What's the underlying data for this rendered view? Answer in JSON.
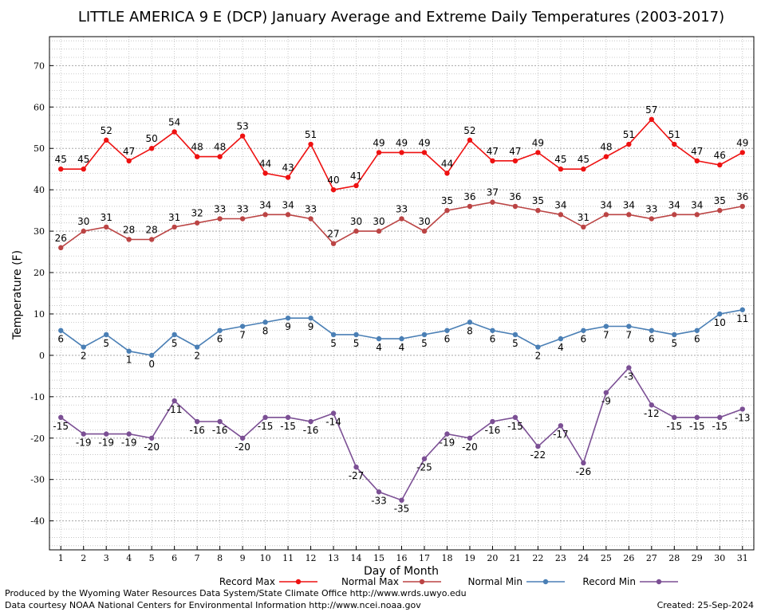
{
  "chart_data": {
    "type": "line",
    "title": "LITTLE AMERICA 9 E (DCP) January Average and Extreme Daily Temperatures (2003-2017)",
    "xlabel": "Day of Month",
    "ylabel": "Temperature (F)",
    "xlim": [
      0.5,
      31.5
    ],
    "ylim": [
      -47,
      77
    ],
    "ytick_step": 10,
    "grid": true,
    "legend_position": "bottom",
    "x": [
      1,
      2,
      3,
      4,
      5,
      6,
      7,
      8,
      9,
      10,
      11,
      12,
      13,
      14,
      15,
      16,
      17,
      18,
      19,
      20,
      21,
      22,
      23,
      24,
      25,
      26,
      27,
      28,
      29,
      30,
      31
    ],
    "series": [
      {
        "name": "Record Max",
        "color": "#ee1111",
        "label_pos": "above",
        "values": [
          45,
          45,
          52,
          47,
          50,
          54,
          48,
          48,
          53,
          44,
          43,
          51,
          40,
          41,
          49,
          49,
          49,
          44,
          52,
          47,
          47,
          49,
          45,
          45,
          48,
          51,
          57,
          51,
          47,
          46,
          49
        ]
      },
      {
        "name": "Normal Max",
        "color": "#bb4444",
        "label_pos": "above",
        "values": [
          26,
          30,
          31,
          28,
          28,
          31,
          32,
          33,
          33,
          34,
          34,
          33,
          27,
          30,
          30,
          33,
          30,
          35,
          36,
          37,
          36,
          35,
          34,
          31,
          34,
          34,
          33,
          34,
          34,
          35,
          36
        ]
      },
      {
        "name": "Normal Min",
        "color": "#4a7fb5",
        "label_pos": "below",
        "values": [
          6,
          2,
          5,
          1,
          0,
          5,
          2,
          6,
          7,
          8,
          9,
          9,
          5,
          5,
          4,
          4,
          5,
          6,
          8,
          6,
          5,
          2,
          4,
          6,
          7,
          7,
          6,
          5,
          6,
          10,
          11
        ]
      },
      {
        "name": "Record Min",
        "color": "#7b4f94",
        "label_pos": "below",
        "values": [
          -15,
          -19,
          -19,
          -19,
          -20,
          -11,
          -16,
          -16,
          -20,
          -15,
          -15,
          -16,
          -14,
          -27,
          -33,
          -35,
          -25,
          -19,
          -20,
          -16,
          -15,
          -22,
          -17,
          -26,
          -9,
          -3,
          -12,
          -15,
          -15,
          -15,
          -13
        ]
      }
    ]
  },
  "footer": {
    "line1": "Produced by the Wyoming Water Resources Data System/State Climate Office http://www.wrds.uwyo.edu",
    "line2": "Data courtesy NOAA National Centers for Environmental Information http://www.ncei.noaa.gov",
    "created": "Created:  25-Sep-2024"
  }
}
